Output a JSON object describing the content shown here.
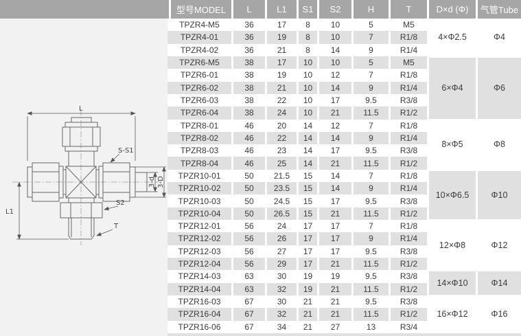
{
  "header": {
    "columns": [
      "型号MODEL",
      "L",
      "L1",
      "S1",
      "S2",
      "H",
      "T",
      "D×d (Φ)",
      "气管Tube"
    ]
  },
  "table": {
    "rows": [
      {
        "model": "TPZR4-M5",
        "L": "36",
        "L1": "17",
        "S1": "8",
        "S2": "10",
        "H": "5",
        "T": "M5"
      },
      {
        "model": "TPZR4-01",
        "L": "36",
        "L1": "19",
        "S1": "8",
        "S2": "10",
        "H": "7",
        "T": "R1/8"
      },
      {
        "model": "TPZR4-02",
        "L": "36",
        "L1": "21",
        "S1": "8",
        "S2": "14",
        "H": "9",
        "T": "R1/4"
      },
      {
        "model": "TPZR6-M5",
        "L": "38",
        "L1": "17",
        "S1": "10",
        "S2": "10",
        "H": "5",
        "T": "M5"
      },
      {
        "model": "TPZR6-01",
        "L": "38",
        "L1": "19",
        "S1": "10",
        "S2": "12",
        "H": "7",
        "T": "R1/8"
      },
      {
        "model": "TPZR6-02",
        "L": "38",
        "L1": "21",
        "S1": "10",
        "S2": "14",
        "H": "9",
        "T": "R1/4"
      },
      {
        "model": "TPZR6-03",
        "L": "38",
        "L1": "22",
        "S1": "10",
        "S2": "17",
        "H": "9.5",
        "T": "R3/8"
      },
      {
        "model": "TPZR6-04",
        "L": "38",
        "L1": "24",
        "S1": "10",
        "S2": "21",
        "H": "11.5",
        "T": "R1/2"
      },
      {
        "model": "TPZR8-01",
        "L": "46",
        "L1": "20",
        "S1": "14",
        "S2": "12",
        "H": "7",
        "T": "R1/8"
      },
      {
        "model": "TPZR8-02",
        "L": "46",
        "L1": "22",
        "S1": "14",
        "S2": "14",
        "H": "9",
        "T": "R1/4"
      },
      {
        "model": "TPZR8-03",
        "L": "46",
        "L1": "23",
        "S1": "14",
        "S2": "17",
        "H": "9.5",
        "T": "R3/8"
      },
      {
        "model": "TPZR8-04",
        "L": "46",
        "L1": "25",
        "S1": "14",
        "S2": "21",
        "H": "11.5",
        "T": "R1/2"
      },
      {
        "model": "TPZR10-01",
        "L": "50",
        "L1": "21.5",
        "S1": "15",
        "S2": "14",
        "H": "7",
        "T": "R1/8"
      },
      {
        "model": "TPZR10-02",
        "L": "50",
        "L1": "23.5",
        "S1": "15",
        "S2": "14",
        "H": "9",
        "T": "R1/4"
      },
      {
        "model": "TPZR10-03",
        "L": "50",
        "L1": "24.5",
        "S1": "15",
        "S2": "17",
        "H": "9.5",
        "T": "R3/8"
      },
      {
        "model": "TPZR10-04",
        "L": "50",
        "L1": "26.5",
        "S1": "15",
        "S2": "21",
        "H": "11.5",
        "T": "R1/2"
      },
      {
        "model": "TPZR12-01",
        "L": "56",
        "L1": "24",
        "S1": "17",
        "S2": "17",
        "H": "7",
        "T": "R1/8"
      },
      {
        "model": "TPZR12-02",
        "L": "56",
        "L1": "26",
        "S1": "17",
        "S2": "17",
        "H": "9",
        "T": "R1/4"
      },
      {
        "model": "TPZR12-03",
        "L": "56",
        "L1": "27",
        "S1": "17",
        "S2": "17",
        "H": "9.5",
        "T": "R3/8"
      },
      {
        "model": "TPZR12-04",
        "L": "56",
        "L1": "29",
        "S1": "17",
        "S2": "21",
        "H": "11.5",
        "T": "R1/2"
      },
      {
        "model": "TPZR14-03",
        "L": "63",
        "L1": "30",
        "S1": "19",
        "S2": "19",
        "H": "9.5",
        "T": "R3/8"
      },
      {
        "model": "TPZR14-04",
        "L": "63",
        "L1": "32",
        "S1": "19",
        "S2": "21",
        "H": "11.5",
        "T": "R1/2"
      },
      {
        "model": "TPZR16-03",
        "L": "67",
        "L1": "30",
        "S1": "21",
        "S2": "21",
        "H": "9.5",
        "T": "R3/8"
      },
      {
        "model": "TPZR16-04",
        "L": "67",
        "L1": "32",
        "S1": "21",
        "S2": "21",
        "H": "11.5",
        "T": "R1/2"
      },
      {
        "model": "TPZR16-06",
        "L": "67",
        "L1": "34",
        "S1": "21",
        "S2": "27",
        "H": "13",
        "T": "R3/4"
      }
    ],
    "groups": [
      {
        "dxd": "4×Φ2.5",
        "tube": "Φ4",
        "span": 3
      },
      {
        "dxd": "6×Φ4",
        "tube": "Φ6",
        "span": 5
      },
      {
        "dxd": "8×Φ5",
        "tube": "Φ8",
        "span": 4
      },
      {
        "dxd": "10×Φ6.5",
        "tube": "Φ10",
        "span": 4
      },
      {
        "dxd": "12×Φ8",
        "tube": "Φ12",
        "span": 4
      },
      {
        "dxd": "14×Φ10",
        "tube": "Φ14",
        "span": 2
      },
      {
        "dxd": "16×Φ12",
        "tube": "Φ16",
        "span": 3
      }
    ]
  },
  "drawing": {
    "labels": {
      "L": "L",
      "L1": "L1",
      "S_S1": "S-S1",
      "S2": "S2",
      "T": "T",
      "d3": "3-d",
      "D3": "3-D"
    }
  },
  "colors": {
    "header_bg": "#a6a6a6",
    "header_text": "#fdfdfd",
    "stripe": "#e0e0e0",
    "panel_bg": "#f2f2f2",
    "cell_text": "#3b3b3b",
    "line": "#666666"
  }
}
